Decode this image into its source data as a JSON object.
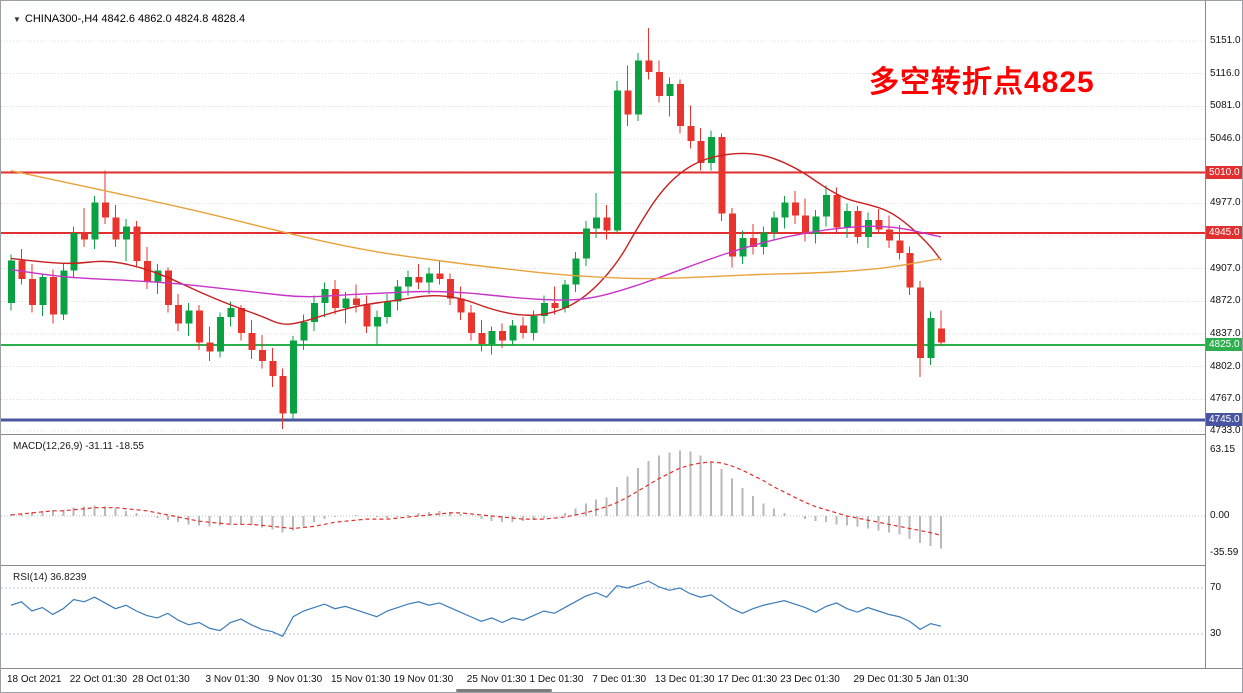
{
  "header": {
    "symbol_line": "CHINA300-,H4  4842.6 4862.0 4824.8 4828.4"
  },
  "annotation": {
    "text": "多空转折点4825",
    "color": "#ff0000"
  },
  "colors": {
    "bull_candle": "#0aa143",
    "bear_candle": "#e8342c",
    "ma_fast": "#c82020",
    "ma_mid": "#c832c8",
    "ma_slow": "#e8a33d",
    "level_red": "#e03030",
    "level_green": "#2eaf4d",
    "level_blue": "#4a55a2",
    "macd_histogram": "#b9b9b9",
    "macd_signal": "#e03030",
    "rsi_line": "#3c7cb8",
    "grid": "#dcdcdc"
  },
  "chart_data": {
    "type": "candlestick",
    "title": "CHINA300-,H4",
    "timeframe": "H4",
    "ohlc_display": {
      "open": 4842.6,
      "high": 4862.0,
      "low": 4824.8,
      "close": 4828.4
    },
    "ylim": [
      4733,
      5151
    ],
    "candles": [
      [
        4870,
        4922,
        4862,
        4916
      ],
      [
        4916,
        4928,
        4890,
        4896
      ],
      [
        4896,
        4912,
        4860,
        4868
      ],
      [
        4868,
        4902,
        4856,
        4898
      ],
      [
        4898,
        4906,
        4848,
        4858
      ],
      [
        4858,
        4912,
        4852,
        4905
      ],
      [
        4905,
        4952,
        4898,
        4945
      ],
      [
        4945,
        4972,
        4930,
        4938
      ],
      [
        4938,
        4985,
        4928,
        4978
      ],
      [
        4978,
        5012,
        4955,
        4962
      ],
      [
        4962,
        4975,
        4930,
        4938
      ],
      [
        4938,
        4960,
        4915,
        4952
      ],
      [
        4952,
        4958,
        4908,
        4915
      ],
      [
        4915,
        4930,
        4885,
        4893
      ],
      [
        4893,
        4912,
        4880,
        4905
      ],
      [
        4905,
        4908,
        4860,
        4868
      ],
      [
        4868,
        4880,
        4840,
        4848
      ],
      [
        4848,
        4870,
        4835,
        4862
      ],
      [
        4862,
        4868,
        4820,
        4828
      ],
      [
        4828,
        4845,
        4808,
        4818
      ],
      [
        4818,
        4860,
        4812,
        4855
      ],
      [
        4855,
        4872,
        4845,
        4865
      ],
      [
        4865,
        4868,
        4830,
        4838
      ],
      [
        4838,
        4852,
        4810,
        4820
      ],
      [
        4820,
        4836,
        4800,
        4808
      ],
      [
        4808,
        4822,
        4780,
        4792
      ],
      [
        4792,
        4800,
        4735,
        4752
      ],
      [
        4752,
        4835,
        4745,
        4830
      ],
      [
        4830,
        4858,
        4820,
        4850
      ],
      [
        4850,
        4878,
        4840,
        4870
      ],
      [
        4870,
        4892,
        4855,
        4885
      ],
      [
        4885,
        4895,
        4858,
        4865
      ],
      [
        4865,
        4882,
        4848,
        4875
      ],
      [
        4875,
        4890,
        4860,
        4868
      ],
      [
        4868,
        4878,
        4838,
        4845
      ],
      [
        4845,
        4862,
        4825,
        4855
      ],
      [
        4855,
        4880,
        4848,
        4872
      ],
      [
        4872,
        4895,
        4862,
        4888
      ],
      [
        4888,
        4905,
        4878,
        4898
      ],
      [
        4898,
        4912,
        4885,
        4892
      ],
      [
        4892,
        4908,
        4880,
        4902
      ],
      [
        4902,
        4915,
        4890,
        4896
      ],
      [
        4896,
        4902,
        4868,
        4875
      ],
      [
        4875,
        4888,
        4852,
        4860
      ],
      [
        4860,
        4868,
        4830,
        4838
      ],
      [
        4838,
        4852,
        4818,
        4826
      ],
      [
        4826,
        4845,
        4815,
        4840
      ],
      [
        4840,
        4848,
        4822,
        4830
      ],
      [
        4830,
        4852,
        4825,
        4846
      ],
      [
        4846,
        4855,
        4832,
        4838
      ],
      [
        4838,
        4862,
        4830,
        4856
      ],
      [
        4856,
        4878,
        4848,
        4870
      ],
      [
        4870,
        4888,
        4858,
        4865
      ],
      [
        4865,
        4895,
        4860,
        4890
      ],
      [
        4890,
        4925,
        4882,
        4918
      ],
      [
        4918,
        4958,
        4910,
        4950
      ],
      [
        4950,
        4988,
        4940,
        4962
      ],
      [
        4962,
        4975,
        4938,
        4948
      ],
      [
        4948,
        5108,
        4945,
        5098
      ],
      [
        5098,
        5125,
        5060,
        5072
      ],
      [
        5072,
        5138,
        5065,
        5130
      ],
      [
        5130,
        5165,
        5110,
        5118
      ],
      [
        5118,
        5130,
        5085,
        5092
      ],
      [
        5092,
        5112,
        5070,
        5105
      ],
      [
        5105,
        5110,
        5052,
        5060
      ],
      [
        5060,
        5082,
        5036,
        5044
      ],
      [
        5044,
        5058,
        5012,
        5020
      ],
      [
        5020,
        5055,
        5012,
        5048
      ],
      [
        5048,
        5052,
        4958,
        4966
      ],
      [
        4966,
        4972,
        4908,
        4920
      ],
      [
        4920,
        4948,
        4912,
        4940
      ],
      [
        4940,
        4955,
        4922,
        4930
      ],
      [
        4930,
        4952,
        4922,
        4946
      ],
      [
        4946,
        4968,
        4938,
        4962
      ],
      [
        4962,
        4985,
        4950,
        4978
      ],
      [
        4978,
        4990,
        4955,
        4964
      ],
      [
        4964,
        4982,
        4936,
        4944
      ],
      [
        4944,
        4970,
        4934,
        4963
      ],
      [
        4963,
        4996,
        4952,
        4986
      ],
      [
        4986,
        4994,
        4944,
        4951
      ],
      [
        4951,
        4977,
        4940,
        4969
      ],
      [
        4969,
        4974,
        4934,
        4941
      ],
      [
        4941,
        4967,
        4929,
        4959
      ],
      [
        4959,
        4971,
        4944,
        4949
      ],
      [
        4949,
        4964,
        4929,
        4937
      ],
      [
        4937,
        4954,
        4917,
        4924
      ],
      [
        4924,
        4931,
        4879,
        4887
      ],
      [
        4887,
        4894,
        4791,
        4811
      ],
      [
        4811,
        4861,
        4804,
        4854
      ],
      [
        4843,
        4862,
        4825,
        4828
      ]
    ],
    "moving_averages": [
      {
        "name": "ma-fast-red",
        "points": [
          [
            0,
            4918
          ],
          [
            3,
            4914
          ],
          [
            6,
            4912
          ],
          [
            9,
            4916
          ],
          [
            12,
            4910
          ],
          [
            15,
            4898
          ],
          [
            18,
            4882
          ],
          [
            21,
            4868
          ],
          [
            24,
            4856
          ],
          [
            26,
            4846
          ],
          [
            28,
            4850
          ],
          [
            31,
            4861
          ],
          [
            34,
            4869
          ],
          [
            37,
            4873
          ],
          [
            40,
            4879
          ],
          [
            43,
            4876
          ],
          [
            46,
            4863
          ],
          [
            49,
            4856
          ],
          [
            52,
            4859
          ],
          [
            55,
            4876
          ],
          [
            58,
            4912
          ],
          [
            60,
            4952
          ],
          [
            62,
            4987
          ],
          [
            64,
            5010
          ],
          [
            66,
            5023
          ],
          [
            68,
            5029
          ],
          [
            70,
            5031
          ],
          [
            72,
            5029
          ],
          [
            74,
            5021
          ],
          [
            76,
            5009
          ],
          [
            78,
            4993
          ],
          [
            80,
            4981
          ],
          [
            82,
            4976
          ],
          [
            84,
            4969
          ],
          [
            86,
            4953
          ],
          [
            88,
            4931
          ],
          [
            89,
            4916
          ]
        ]
      },
      {
        "name": "ma-mid-magenta",
        "points": [
          [
            0,
            4906
          ],
          [
            4,
            4899
          ],
          [
            8,
            4896
          ],
          [
            12,
            4894
          ],
          [
            16,
            4891
          ],
          [
            20,
            4886
          ],
          [
            24,
            4881
          ],
          [
            28,
            4876
          ],
          [
            32,
            4879
          ],
          [
            36,
            4881
          ],
          [
            40,
            4883
          ],
          [
            44,
            4881
          ],
          [
            48,
            4876
          ],
          [
            52,
            4873
          ],
          [
            55,
            4874
          ],
          [
            58,
            4882
          ],
          [
            62,
            4897
          ],
          [
            66,
            4914
          ],
          [
            70,
            4929
          ],
          [
            74,
            4941
          ],
          [
            78,
            4949
          ],
          [
            82,
            4953
          ],
          [
            85,
            4951
          ],
          [
            87,
            4946
          ],
          [
            89,
            4941
          ]
        ]
      },
      {
        "name": "ma-slow-orange",
        "points": [
          [
            0,
            5012
          ],
          [
            5,
            5000
          ],
          [
            10,
            4988
          ],
          [
            15,
            4976
          ],
          [
            20,
            4963
          ],
          [
            25,
            4949
          ],
          [
            28,
            4941
          ],
          [
            32,
            4931
          ],
          [
            36,
            4923
          ],
          [
            40,
            4917
          ],
          [
            44,
            4911
          ],
          [
            48,
            4906
          ],
          [
            52,
            4901
          ],
          [
            56,
            4898
          ],
          [
            60,
            4896
          ],
          [
            64,
            4897
          ],
          [
            68,
            4899
          ],
          [
            72,
            4901
          ],
          [
            76,
            4902
          ],
          [
            80,
            4904
          ],
          [
            84,
            4908
          ],
          [
            89,
            4918
          ]
        ]
      }
    ],
    "levels": [
      {
        "price": 5010.0,
        "label": "5010.0",
        "color": "#e03030",
        "width": 2
      },
      {
        "price": 4945.0,
        "label": "4945.0",
        "color": "#e03030",
        "width": 2
      },
      {
        "price": 4825.0,
        "label": "4825.0",
        "color": "#2eaf4d",
        "width": 2
      },
      {
        "price": 4745.0,
        "label": "4745.0",
        "color": "#4a55a2",
        "width": 3
      }
    ],
    "price_axis_labels": [
      {
        "text": "5151.0",
        "price": 5151
      },
      {
        "text": "5116.0",
        "price": 5116
      },
      {
        "text": "5081.0",
        "price": 5081
      },
      {
        "text": "5046.0",
        "price": 5046
      },
      {
        "text": "4977.0",
        "price": 4977
      },
      {
        "text": "4907.0",
        "price": 4907
      },
      {
        "text": "4872.0",
        "price": 4872
      },
      {
        "text": "4837.0",
        "price": 4837
      },
      {
        "text": "4802.0",
        "price": 4802
      },
      {
        "text": "4767.0",
        "price": 4767
      },
      {
        "text": "4733.0",
        "price": 4733
      }
    ],
    "grid_prices": [
      5151,
      5116,
      5081,
      5046,
      5011,
      4977,
      4942,
      4907,
      4872,
      4837,
      4802,
      4767,
      4733
    ],
    "time_axis_labels": [
      {
        "text": "18 Oct 2021",
        "index": 0
      },
      {
        "text": "22 Oct 01:30",
        "index": 6
      },
      {
        "text": "28 Oct 01:30",
        "index": 12
      },
      {
        "text": "3 Nov 01:30",
        "index": 19
      },
      {
        "text": "9 Nov 01:30",
        "index": 25
      },
      {
        "text": "15 Nov 01:30",
        "index": 31
      },
      {
        "text": "19 Nov 01:30",
        "index": 37
      },
      {
        "text": "25 Nov 01:30",
        "index": 44
      },
      {
        "text": "1 Dec 01:30",
        "index": 50
      },
      {
        "text": "7 Dec 01:30",
        "index": 56
      },
      {
        "text": "13 Dec 01:30",
        "index": 62
      },
      {
        "text": "17 Dec 01:30",
        "index": 68
      },
      {
        "text": "23 Dec 01:30",
        "index": 74
      },
      {
        "text": "29 Dec 01:30",
        "index": 81
      },
      {
        "text": "5 Jan 01:30",
        "index": 87
      }
    ],
    "macd": {
      "label": "MACD(12,26,9) -31.11 -18.55",
      "values": {
        "main": -31.11,
        "signal": -18.55
      },
      "histogram": [
        2,
        3,
        4,
        5,
        6,
        6,
        8,
        9,
        10,
        9,
        7,
        5,
        3,
        0,
        -2,
        -4,
        -6,
        -8,
        -9,
        -10,
        -9,
        -8,
        -8,
        -9,
        -11,
        -13,
        -16,
        -14,
        -10,
        -6,
        -3,
        -1,
        0,
        1,
        0,
        -1,
        -2,
        -1,
        1,
        3,
        4,
        5,
        4,
        2,
        0,
        -3,
        -5,
        -6,
        -6,
        -5,
        -4,
        -2,
        0,
        3,
        7,
        12,
        16,
        18,
        28,
        38,
        46,
        53,
        58,
        61,
        63,
        62,
        58,
        52,
        45,
        36,
        27,
        19,
        12,
        7,
        3,
        0,
        -3,
        -5,
        -6,
        -8,
        -9,
        -10,
        -12,
        -14,
        -16,
        -18,
        -22,
        -26,
        -29,
        -31.1
      ],
      "signal": [
        1,
        2,
        3,
        4,
        5,
        5,
        6,
        7,
        8,
        8,
        8,
        7,
        6,
        5,
        3,
        1,
        -1,
        -3,
        -5,
        -6,
        -7,
        -8,
        -8,
        -8,
        -9,
        -10,
        -11,
        -12,
        -11,
        -10,
        -8,
        -6,
        -5,
        -4,
        -3,
        -3,
        -3,
        -2,
        -1,
        0,
        1,
        2,
        3,
        3,
        2,
        1,
        0,
        -1,
        -2,
        -3,
        -3,
        -3,
        -2,
        -1,
        1,
        3,
        6,
        9,
        13,
        18,
        24,
        30,
        36,
        41,
        46,
        49,
        51,
        52,
        51,
        48,
        44,
        39,
        34,
        28,
        23,
        18,
        13,
        9,
        6,
        3,
        0,
        -2,
        -4,
        -6,
        -8,
        -10,
        -12,
        -14,
        -16,
        -18.6
      ],
      "axis_labels": [
        {
          "text": "63.15",
          "value": 63.15
        },
        {
          "text": "0.00",
          "value": 0
        },
        {
          "text": "-35.59",
          "value": -35.59
        }
      ]
    },
    "rsi": {
      "label": "RSI(14) 36.8239",
      "current": 36.8239,
      "values": [
        55,
        58,
        50,
        53,
        47,
        52,
        60,
        58,
        62,
        57,
        52,
        55,
        50,
        46,
        44,
        48,
        42,
        38,
        40,
        35,
        33,
        40,
        43,
        38,
        34,
        32,
        28,
        45,
        50,
        53,
        56,
        52,
        54,
        51,
        48,
        45,
        50,
        53,
        56,
        58,
        55,
        57,
        53,
        49,
        45,
        41,
        44,
        40,
        44,
        42,
        46,
        50,
        48,
        53,
        58,
        63,
        66,
        62,
        72,
        70,
        73,
        76,
        71,
        68,
        70,
        65,
        62,
        64,
        58,
        52,
        48,
        52,
        55,
        57,
        59,
        56,
        53,
        49,
        54,
        57,
        52,
        49,
        53,
        50,
        47,
        45,
        41,
        34,
        39,
        36.8
      ],
      "levels": [
        70,
        30
      ],
      "axis_labels": [
        {
          "text": "70",
          "value": 70
        },
        {
          "text": "30",
          "value": 30
        }
      ]
    }
  }
}
